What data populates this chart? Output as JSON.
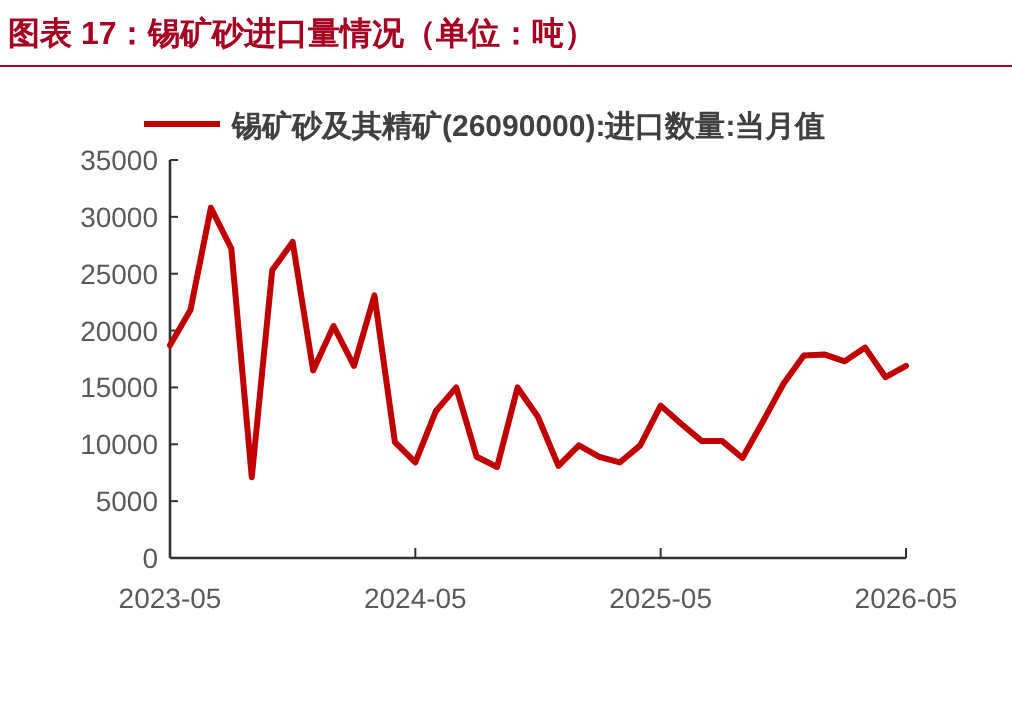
{
  "chart_data": {
    "type": "line",
    "title": "图表 17：锡矿砂进口量情况（单位：吨）",
    "x": [
      "2023-05",
      "2023-06",
      "2023-07",
      "2023-08",
      "2023-09",
      "2023-10",
      "2023-11",
      "2023-12",
      "2024-01",
      "2024-02",
      "2024-03",
      "2024-04",
      "2024-05",
      "2024-06",
      "2024-07",
      "2024-08",
      "2024-09",
      "2024-10",
      "2024-11",
      "2024-12",
      "2025-01",
      "2025-02",
      "2025-03",
      "2025-04",
      "2025-05",
      "2025-06",
      "2025-07",
      "2025-08",
      "2025-09",
      "2025-10",
      "2025-11",
      "2025-12",
      "2026-01",
      "2026-02",
      "2026-03",
      "2026-04",
      "2026-05"
    ],
    "series": [
      {
        "name": "锡矿砂及其精矿(26090000):进口数量:当月值",
        "color": "#c00000",
        "values": [
          18700,
          21800,
          30800,
          27200,
          7100,
          25300,
          27800,
          16500,
          20400,
          16900,
          23100,
          10200,
          8400,
          12900,
          15000,
          8900,
          8000,
          15000,
          12400,
          8100,
          9900,
          8900,
          8400,
          9900,
          13400,
          11800,
          10300,
          10300,
          8800,
          12000,
          15300,
          17800,
          17900,
          17300,
          18500,
          15900,
          16900
        ]
      }
    ],
    "xlim": [
      "2023-05",
      "2026-05"
    ],
    "xticks": [
      "2023-05",
      "2024-05",
      "2025-05",
      "2026-05"
    ],
    "ylim": [
      0,
      35000
    ],
    "yticks": [
      0,
      5000,
      10000,
      15000,
      20000,
      25000,
      30000,
      35000
    ],
    "legend": "top",
    "grid": false,
    "marker": "none",
    "line_style": "solid"
  }
}
